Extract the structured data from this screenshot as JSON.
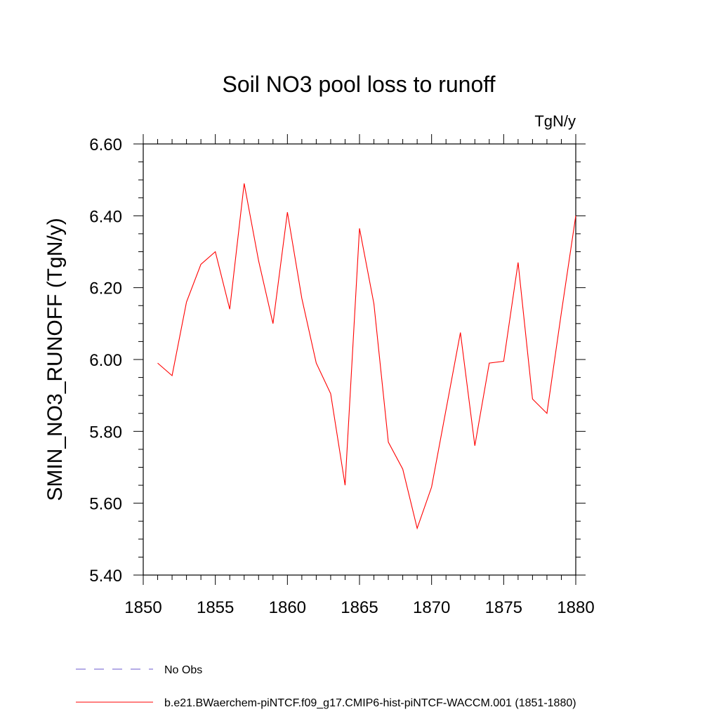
{
  "chart_data": {
    "type": "line",
    "title": "Soil NO3 pool loss to runoff",
    "units": "TgN/y",
    "ylabel": "SMIN_NO3_RUNOFF  (TgN/y)",
    "xlabel": "",
    "xlim": [
      1850,
      1880
    ],
    "ylim": [
      5.4,
      6.6
    ],
    "x_ticks": [
      "1850",
      "1855",
      "1860",
      "1865",
      "1870",
      "1875",
      "1880"
    ],
    "y_ticks": [
      "5.40",
      "5.60",
      "5.80",
      "6.00",
      "6.20",
      "6.40",
      "6.60"
    ],
    "grid": false,
    "legend_position": "bottom-left",
    "series": [
      {
        "name": "b.e21.BWaerchem-piNTCF.f09_g17.CMIP6-hist-piNTCF-WACCM.001 (1851-1880)",
        "color": "#ff0000",
        "style": "solid",
        "x": [
          1851,
          1852,
          1853,
          1854,
          1855,
          1856,
          1857,
          1858,
          1859,
          1860,
          1861,
          1862,
          1863,
          1864,
          1865,
          1866,
          1867,
          1868,
          1869,
          1870,
          1871,
          1872,
          1873,
          1874,
          1875,
          1876,
          1877,
          1878,
          1879,
          1880
        ],
        "values": [
          5.99,
          5.955,
          6.16,
          6.265,
          6.3,
          6.14,
          6.49,
          6.275,
          6.1,
          6.41,
          6.17,
          5.99,
          5.905,
          5.65,
          6.365,
          6.155,
          5.77,
          5.695,
          5.53,
          5.645,
          5.86,
          6.075,
          5.76,
          5.99,
          5.995,
          6.27,
          5.89,
          5.85,
          6.13,
          6.4
        ]
      }
    ],
    "legend": [
      {
        "label": "No Obs",
        "color": "#6a5acd",
        "style": "dashed"
      },
      {
        "label": "b.e21.BWaerchem-piNTCF.f09_g17.CMIP6-hist-piNTCF-WACCM.001 (1851-1880)",
        "color": "#ff0000",
        "style": "solid"
      }
    ]
  }
}
